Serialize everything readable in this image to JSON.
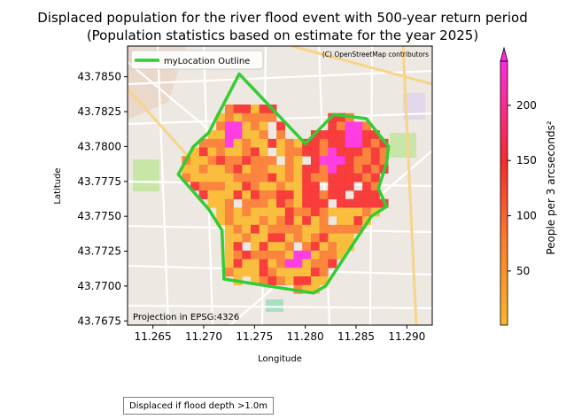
{
  "figure": {
    "title_line1": "Displaced population for the river flood event with 500-year return period",
    "title_line2": "(Population statistics based on estimate for the year 2025)",
    "footnote": "Displaced if flood depth >1.0m"
  },
  "map": {
    "xlabel": "Longitude",
    "ylabel": "Latitude",
    "attribution": "(C) OpenStreetMap contributors",
    "projection_note": "Projection in EPSG:4326",
    "legend": {
      "label": "myLocation Outline",
      "color": "#33cc33",
      "placement": "upper-left"
    },
    "outline_color": "#33cc33",
    "basemap_colors": {
      "land": "#ede8e1",
      "road": "#ffffff",
      "green": "#c8e6a8",
      "major_road": "#f7d48a"
    }
  },
  "chart_data": {
    "type": "heatmap",
    "xlim": [
      11.2625,
      11.2925
    ],
    "ylim": [
      43.7672,
      43.7872
    ],
    "x_ticks": [
      11.265,
      11.27,
      11.275,
      11.28,
      11.285,
      11.29
    ],
    "x_tick_labels": [
      "11.265",
      "11.270",
      "11.275",
      "11.280",
      "11.285",
      "11.290"
    ],
    "y_ticks": [
      43.7675,
      43.77,
      43.7725,
      43.775,
      43.7775,
      43.78,
      43.7825,
      43.785
    ],
    "y_tick_labels": [
      "43.7675",
      "43.7700",
      "43.7725",
      "43.7750",
      "43.7775",
      "43.7800",
      "43.7825",
      "43.7850"
    ],
    "outline_polygon": [
      [
        11.2735,
        43.7852
      ],
      [
        11.28,
        43.7802
      ],
      [
        11.2828,
        43.7823
      ],
      [
        11.286,
        43.782
      ],
      [
        11.2882,
        43.78
      ],
      [
        11.288,
        43.7788
      ],
      [
        11.2872,
        43.777
      ],
      [
        11.288,
        43.7757
      ],
      [
        11.2865,
        43.775
      ],
      [
        11.282,
        43.77
      ],
      [
        11.2808,
        43.7695
      ],
      [
        11.272,
        43.7705
      ],
      [
        11.2718,
        43.774
      ],
      [
        11.2705,
        43.7755
      ],
      [
        11.2675,
        43.778
      ],
      [
        11.269,
        43.78
      ],
      [
        11.2705,
        43.781
      ],
      [
        11.2735,
        43.7852
      ]
    ],
    "colorbar": {
      "label": "People per 3 arcseconds²",
      "min": 1,
      "max": 240,
      "ticks": [
        50,
        100,
        150,
        200
      ],
      "extend": "max",
      "colors": [
        "#fbb92c",
        "#fc7a2c",
        "#f72b2b",
        "#ff2be0"
      ]
    }
  }
}
